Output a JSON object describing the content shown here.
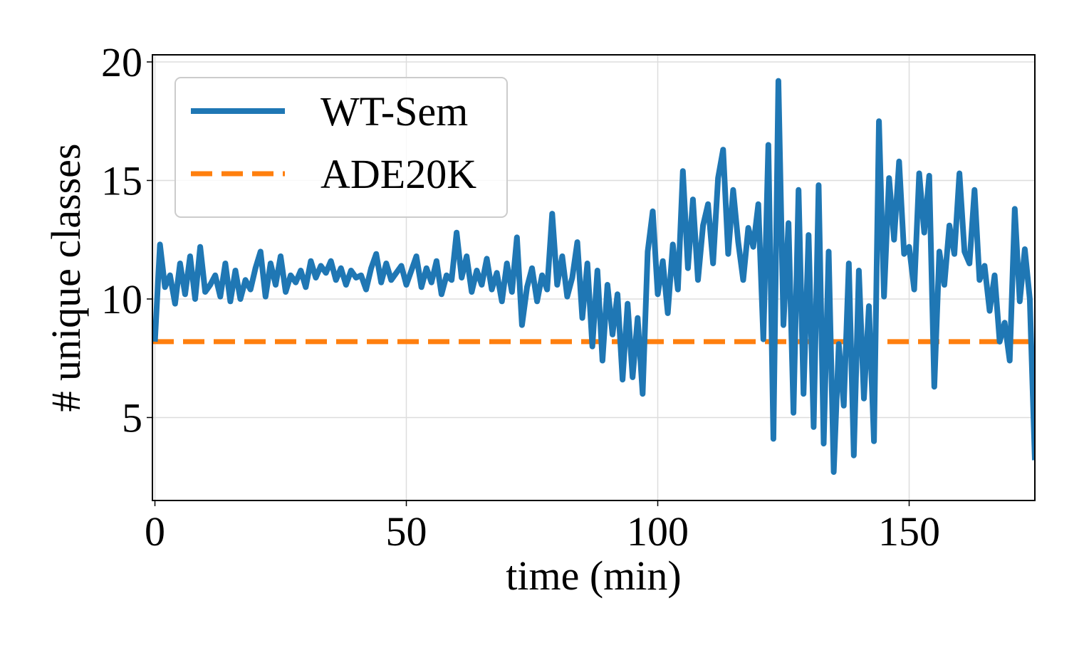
{
  "chart_data": {
    "type": "line",
    "title": "",
    "xlabel": "time (min)",
    "ylabel": "# unique classes",
    "xlim": [
      -0.5,
      175
    ],
    "ylim": [
      1.5,
      20.3
    ],
    "xticks": [
      0,
      50,
      100,
      150
    ],
    "yticks": [
      5,
      10,
      15,
      20
    ],
    "grid": true,
    "legend_position": "upper-left",
    "series": [
      {
        "name": "WT-Sem",
        "style": "solid",
        "color": "#1f77b4",
        "x": [
          0,
          1,
          2,
          3,
          4,
          5,
          6,
          7,
          8,
          9,
          10,
          11,
          12,
          13,
          14,
          15,
          16,
          17,
          18,
          19,
          20,
          21,
          22,
          23,
          24,
          25,
          26,
          27,
          28,
          29,
          30,
          31,
          32,
          33,
          34,
          35,
          36,
          37,
          38,
          39,
          40,
          41,
          42,
          43,
          44,
          45,
          46,
          47,
          48,
          49,
          50,
          51,
          52,
          53,
          54,
          55,
          56,
          57,
          58,
          59,
          60,
          61,
          62,
          63,
          64,
          65,
          66,
          67,
          68,
          69,
          70,
          71,
          72,
          73,
          74,
          75,
          76,
          77,
          78,
          79,
          80,
          81,
          82,
          83,
          84,
          85,
          86,
          87,
          88,
          89,
          90,
          91,
          92,
          93,
          94,
          95,
          96,
          97,
          98,
          99,
          100,
          101,
          102,
          103,
          104,
          105,
          106,
          107,
          108,
          109,
          110,
          111,
          112,
          113,
          114,
          115,
          116,
          117,
          118,
          119,
          120,
          121,
          122,
          123,
          124,
          125,
          126,
          127,
          128,
          129,
          130,
          131,
          132,
          133,
          134,
          135,
          136,
          137,
          138,
          139,
          140,
          141,
          142,
          143,
          144,
          145,
          146,
          147,
          148,
          149,
          150,
          151,
          152,
          153,
          154,
          155,
          156,
          157,
          158,
          159,
          160,
          161,
          162,
          163,
          164,
          165,
          166,
          167,
          168,
          169,
          170,
          171,
          172,
          173,
          174,
          175
        ],
        "y": [
          8.2,
          12.3,
          10.5,
          11.0,
          9.8,
          11.5,
          10.2,
          11.8,
          10.0,
          12.2,
          10.3,
          10.6,
          11.0,
          10.1,
          11.5,
          9.9,
          11.2,
          10.0,
          10.8,
          10.4,
          11.3,
          12.0,
          10.1,
          11.5,
          10.6,
          11.8,
          10.3,
          11.0,
          10.7,
          11.2,
          10.5,
          11.6,
          10.9,
          11.4,
          11.1,
          11.6,
          10.8,
          11.3,
          10.6,
          11.2,
          10.9,
          11.0,
          10.4,
          11.3,
          11.9,
          10.7,
          11.5,
          10.8,
          11.1,
          11.4,
          10.6,
          11.2,
          11.8,
          10.5,
          11.3,
          10.7,
          11.6,
          10.2,
          11.0,
          10.8,
          12.8,
          10.9,
          11.8,
          10.3,
          11.2,
          10.6,
          11.7,
          10.4,
          11.1,
          9.9,
          11.5,
          10.3,
          12.6,
          8.9,
          10.5,
          11.3,
          9.9,
          11.0,
          10.4,
          13.6,
          10.6,
          11.8,
          10.1,
          10.9,
          12.4,
          9.2,
          11.5,
          8.0,
          11.2,
          7.4,
          10.6,
          8.5,
          10.2,
          6.6,
          9.8,
          6.7,
          9.2,
          6.0,
          12.0,
          13.7,
          10.2,
          11.6,
          9.4,
          12.3,
          10.4,
          15.4,
          11.3,
          14.2,
          10.8,
          13.1,
          14.0,
          11.5,
          15.1,
          16.3,
          11.9,
          14.6,
          12.4,
          10.8,
          13.0,
          12.2,
          14.0,
          8.3,
          16.5,
          4.1,
          19.2,
          8.9,
          13.2,
          5.2,
          14.6,
          6.0,
          12.7,
          4.6,
          14.8,
          3.9,
          12.0,
          2.7,
          8.1,
          5.5,
          11.5,
          3.4,
          11.2,
          5.8,
          9.7,
          4.0,
          17.5,
          10.1,
          15.1,
          12.5,
          15.8,
          11.9,
          12.2,
          10.4,
          15.3,
          12.8,
          15.2,
          6.3,
          12.0,
          10.6,
          13.1,
          11.9,
          15.3,
          12.0,
          11.5,
          14.6,
          10.8,
          11.4,
          9.5,
          11.0,
          8.2,
          9.0,
          7.4,
          13.8,
          9.9,
          12.1,
          10.0,
          3.2
        ]
      },
      {
        "name": "ADE20K",
        "style": "dashed",
        "color": "#ff7f0e",
        "x": [
          -0.5,
          175
        ],
        "y": [
          8.2,
          8.2
        ]
      }
    ]
  }
}
